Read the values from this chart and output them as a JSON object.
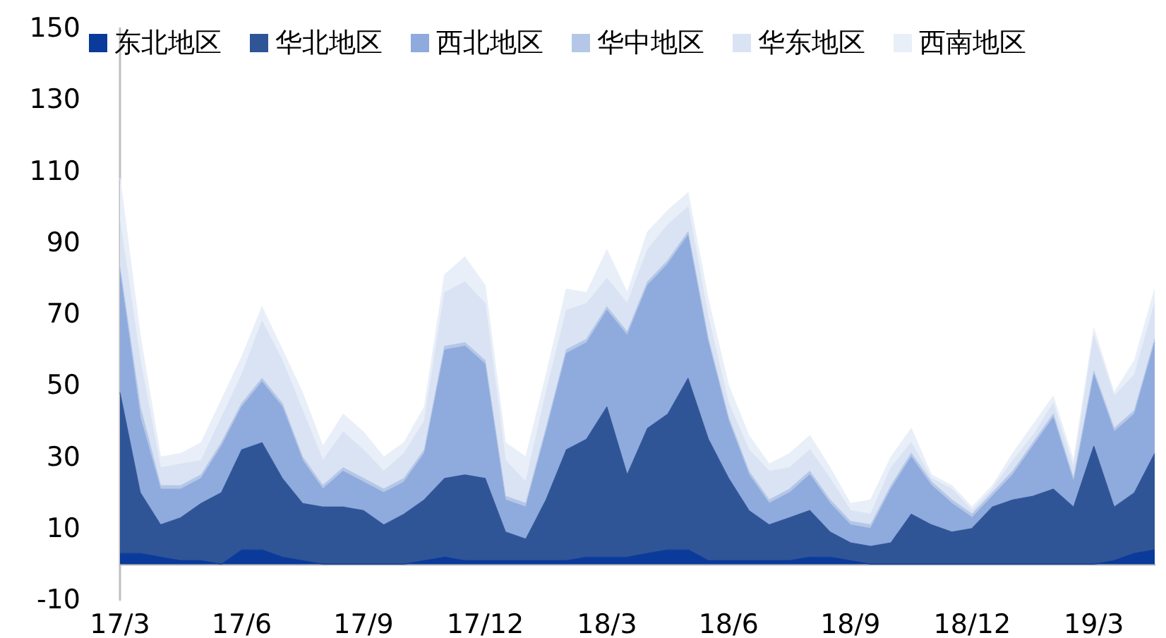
{
  "chart_data": {
    "type": "area",
    "stacked": true,
    "categories": [
      "17/3",
      null,
      null,
      null,
      null,
      null,
      "17/6",
      null,
      null,
      null,
      null,
      null,
      "17/9",
      null,
      null,
      null,
      null,
      null,
      "17/12",
      null,
      null,
      null,
      null,
      null,
      "18/3",
      null,
      null,
      null,
      null,
      null,
      "18/6",
      null,
      null,
      null,
      null,
      null,
      "18/9",
      null,
      null,
      null,
      null,
      null,
      "18/12",
      null,
      null,
      null,
      null,
      null,
      "19/3",
      null,
      null,
      null
    ],
    "series": [
      {
        "name": "东北地区",
        "color": "#0a3a9a",
        "values": [
          3,
          3,
          2,
          1,
          1,
          0,
          4,
          4,
          2,
          1,
          0,
          0,
          0,
          0,
          0,
          1,
          2,
          1,
          1,
          1,
          1,
          1,
          1,
          2,
          2,
          2,
          3,
          4,
          4,
          1,
          1,
          1,
          1,
          1,
          2,
          2,
          1,
          0,
          0,
          0,
          0,
          0,
          0,
          0,
          0,
          0,
          0,
          0,
          0,
          1,
          3,
          4
        ]
      },
      {
        "name": "华北地区",
        "color": "#2f5597",
        "values": [
          45,
          17,
          9,
          12,
          16,
          20,
          28,
          30,
          22,
          16,
          16,
          16,
          15,
          11,
          14,
          17,
          22,
          24,
          23,
          8,
          6,
          17,
          31,
          33,
          42,
          23,
          35,
          38,
          48,
          34,
          23,
          14,
          10,
          12,
          13,
          7,
          5,
          5,
          6,
          14,
          11,
          9,
          10,
          16,
          18,
          19,
          21,
          16,
          33,
          15,
          17,
          27
        ]
      },
      {
        "name": "西北地区",
        "color": "#8faadc",
        "values": [
          34,
          21,
          10,
          8,
          7,
          13,
          12,
          17,
          20,
          12,
          5,
          10,
          8,
          9,
          9,
          13,
          36,
          36,
          32,
          9,
          9,
          19,
          27,
          27,
          27,
          39,
          40,
          42,
          40,
          27,
          16,
          10,
          6,
          7,
          10,
          8,
          5,
          5,
          15,
          16,
          11,
          8,
          3,
          3,
          7,
          14,
          20,
          7,
          20,
          21,
          22,
          31
        ]
      },
      {
        "name": "华中地区",
        "color": "#b4c7e7",
        "values": [
          1,
          3,
          1,
          1,
          1,
          1,
          1,
          1,
          1,
          1,
          1,
          1,
          1,
          1,
          1,
          1,
          1,
          1,
          1,
          1,
          1,
          1,
          1,
          1,
          1,
          1,
          1,
          1,
          1,
          1,
          1,
          1,
          1,
          1,
          1,
          1,
          1,
          1,
          1,
          1,
          1,
          1,
          1,
          1,
          1,
          1,
          1,
          1,
          1,
          1,
          1,
          1
        ]
      },
      {
        "name": "华东地区",
        "color": "#dae3f3",
        "values": [
          13,
          13,
          5,
          6,
          4,
          7,
          8,
          16,
          12,
          13,
          7,
          10,
          8,
          5,
          7,
          8,
          15,
          17,
          16,
          10,
          6,
          10,
          11,
          10,
          8,
          8,
          9,
          10,
          7,
          6,
          4,
          6,
          8,
          6,
          6,
          6,
          3,
          3,
          5,
          3,
          1,
          3,
          1,
          1,
          3,
          2,
          3,
          3,
          10,
          9,
          10,
          10
        ]
      },
      {
        "name": "西南地区",
        "color": "#e9eff8",
        "values": [
          12,
          7,
          3,
          3,
          5,
          5,
          5,
          4,
          3,
          5,
          4,
          5,
          5,
          4,
          3,
          4,
          5,
          7,
          5,
          5,
          7,
          5,
          6,
          3,
          8,
          3,
          5,
          4,
          4,
          5,
          5,
          4,
          2,
          4,
          4,
          3,
          2,
          4,
          3,
          4,
          1,
          1,
          1,
          1,
          2,
          3,
          2,
          2,
          2,
          1,
          4,
          4
        ]
      }
    ],
    "ylim": [
      -10,
      150
    ],
    "yticks": [
      -10,
      10,
      30,
      50,
      70,
      90,
      110,
      130,
      150
    ],
    "grid": false,
    "legend": "top",
    "marker": "none"
  }
}
